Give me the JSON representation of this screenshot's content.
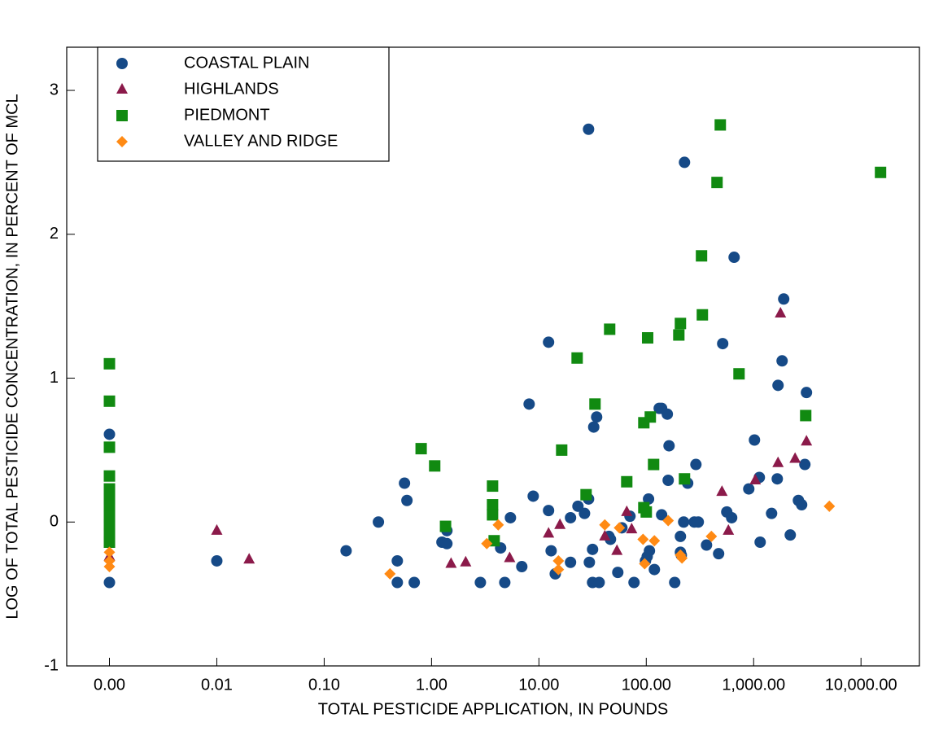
{
  "chart_data": {
    "type": "scatter",
    "xlabel": "TOTAL PESTICIDE APPLICATION, IN POUNDS",
    "ylabel": "LOG OF TOTAL PESTICIDE CONCENTRATION, IN PERCENT OF MCL",
    "xscale": "log",
    "xlim": [
      0.0004,
      35000
    ],
    "ylim": [
      -1,
      3.3
    ],
    "xticks": [
      {
        "value": 0.001,
        "label": "0.00"
      },
      {
        "value": 0.01,
        "label": "0.01"
      },
      {
        "value": 0.1,
        "label": "0.10"
      },
      {
        "value": 1,
        "label": "1.00"
      },
      {
        "value": 10,
        "label": "10.00"
      },
      {
        "value": 100,
        "label": "100.00"
      },
      {
        "value": 1000,
        "label": "1,000.00"
      },
      {
        "value": 10000,
        "label": "10,000.00"
      }
    ],
    "yticks": [
      -1,
      0,
      1,
      2,
      3
    ],
    "grid": false,
    "legend": "upper left",
    "series": [
      {
        "name": "COASTAL PLAIN",
        "color": "#164a87",
        "marker": "circle",
        "x": [
          0.001,
          0.001,
          0.001,
          0.001,
          0.01,
          0.16,
          0.32,
          0.48,
          0.48,
          0.56,
          0.59,
          0.69,
          1.25,
          1.39,
          1.39,
          2.85,
          4.4,
          4.81,
          5.43,
          6.93,
          8.85,
          8.11,
          12.3,
          12.3,
          14.2,
          13.0,
          19.7,
          19.7,
          23.1,
          26.6,
          29,
          29,
          29.5,
          31.6,
          31.6,
          32.4,
          34.5,
          36.4,
          44.9,
          46.4,
          54.3,
          59.3,
          70.5,
          76.9,
          98.3,
          102,
          105,
          107,
          119,
          132,
          139,
          139,
          157,
          160,
          163,
          184,
          208,
          208,
          212,
          223,
          227,
          243,
          280,
          290,
          305,
          364,
          472,
          515,
          562,
          624,
          658,
          901,
          1018,
          1130,
          1150,
          1469,
          1687,
          1841,
          1906,
          2193,
          2612,
          2800,
          3000,
          3105,
          1660
        ],
        "values": [
          0.61,
          0,
          -0.42,
          -0.11,
          -0.27,
          -0.2,
          0,
          -0.27,
          -0.42,
          0.27,
          0.15,
          -0.42,
          -0.14,
          -0.06,
          -0.15,
          -0.42,
          -0.18,
          -0.42,
          0.03,
          -0.31,
          0.18,
          0.82,
          1.25,
          0.08,
          -0.36,
          -0.2,
          0.03,
          -0.28,
          0.11,
          0.06,
          2.73,
          0.16,
          -0.28,
          -0.42,
          -0.19,
          0.66,
          0.73,
          -0.42,
          -0.1,
          -0.12,
          -0.35,
          -0.04,
          0.04,
          -0.42,
          -0.27,
          -0.24,
          0.16,
          -0.2,
          -0.33,
          0.79,
          0.05,
          0.79,
          0.75,
          0.29,
          0.53,
          -0.42,
          -0.1,
          -0.21,
          -0.23,
          0,
          2.5,
          0.27,
          0,
          0.4,
          0,
          -0.16,
          -0.22,
          1.24,
          0.07,
          0.03,
          1.84,
          0.23,
          0.57,
          0.31,
          -0.14,
          0.06,
          0.95,
          1.12,
          1.55,
          -0.09,
          0.15,
          0.12,
          0.4,
          0.9,
          0.3
        ]
      },
      {
        "name": "HIGHLANDS",
        "color": "#8b1a4a",
        "marker": "triangle",
        "x": [
          0.001,
          0.01,
          0.02,
          1.52,
          2.08,
          5.34,
          12.3,
          15.7,
          41.1,
          53.3,
          65.8,
          73.1,
          507,
          582,
          1035,
          1687,
          1778,
          2432,
          3105
        ],
        "values": [
          -0.24,
          -0.06,
          -0.26,
          -0.29,
          -0.28,
          -0.25,
          -0.08,
          -0.02,
          -0.1,
          -0.2,
          0.07,
          -0.05,
          0.21,
          -0.06,
          0.29,
          0.41,
          1.45,
          0.44,
          0.56
        ]
      },
      {
        "name": "PIEDMONT",
        "color": "#118a11",
        "marker": "square",
        "x": [
          0.001,
          0.001,
          0.001,
          0.001,
          0.001,
          0.001,
          0.001,
          0.001,
          0.001,
          0.001,
          0.001,
          0.8,
          1.07,
          1.35,
          3.7,
          3.7,
          3.7,
          3.83,
          16.3,
          22.7,
          27.5,
          33.3,
          45.6,
          65.8,
          103,
          94.9,
          94.9,
          100,
          109,
          117,
          201,
          208,
          227,
          333,
          327,
          456,
          489,
          731,
          3055,
          15200
        ],
        "values": [
          1.1,
          0.84,
          0.52,
          0.32,
          0.23,
          0.16,
          0.11,
          0.04,
          -0.02,
          -0.08,
          -0.14,
          0.51,
          0.39,
          -0.03,
          0.25,
          0.12,
          0.05,
          -0.13,
          0.5,
          1.14,
          0.19,
          0.82,
          1.34,
          0.28,
          1.28,
          0.69,
          0.1,
          0.07,
          0.73,
          0.4,
          1.3,
          1.38,
          0.3,
          1.44,
          1.85,
          2.36,
          2.76,
          1.03,
          0.74,
          2.43
        ]
      },
      {
        "name": "VALLEY AND RIDGE",
        "color": "#ff8a14",
        "marker": "diamond",
        "x": [
          0.001,
          0.001,
          0.001,
          0.41,
          3.27,
          4.18,
          15.2,
          15.2,
          41.1,
          56.2,
          93.3,
          96.6,
          119,
          160,
          208,
          215,
          404,
          5070
        ],
        "values": [
          -0.21,
          -0.27,
          -0.31,
          -0.36,
          -0.15,
          -0.02,
          -0.27,
          -0.33,
          -0.02,
          -0.04,
          -0.12,
          -0.29,
          -0.13,
          0.01,
          -0.23,
          -0.25,
          -0.1,
          0.11
        ]
      }
    ]
  }
}
